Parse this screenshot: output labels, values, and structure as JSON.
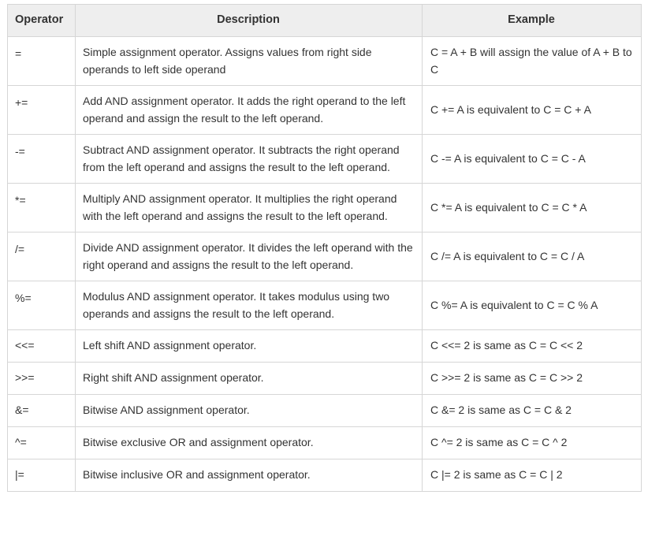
{
  "table": {
    "headers": {
      "operator": "Operator",
      "description": "Description",
      "example": "Example"
    },
    "rows": [
      {
        "operator": "=",
        "description": "Simple assignment operator. Assigns values from right side operands to left side operand",
        "example": "C = A + B will assign the value of A + B to C"
      },
      {
        "operator": "+=",
        "description": "Add AND assignment operator. It adds the right operand to the left operand and assign the result to the left operand.",
        "example": "C += A is equivalent to C = C + A"
      },
      {
        "operator": "-=",
        "description": "Subtract AND assignment operator. It subtracts the right operand from the left operand and assigns the result to the left operand.",
        "example": "C -= A is equivalent to C = C - A"
      },
      {
        "operator": "*=",
        "description": "Multiply AND assignment operator. It multiplies the right operand with the left operand and assigns the result to the left operand.",
        "example": "C *= A is equivalent to C = C * A"
      },
      {
        "operator": "/=",
        "description": "Divide AND assignment operator. It divides the left operand with the right operand and assigns the result to the left operand.",
        "example": "C /= A is equivalent to C = C / A"
      },
      {
        "operator": "%=",
        "description": "Modulus AND assignment operator. It takes modulus using two operands and assigns the result to the left operand.",
        "example": "C %= A is equivalent to C = C % A"
      },
      {
        "operator": "<<=",
        "description": "Left shift AND assignment operator.",
        "example": "C <<= 2 is same as C = C << 2"
      },
      {
        "operator": ">>=",
        "description": "Right shift AND assignment operator.",
        "example": "C >>= 2 is same as C = C >> 2"
      },
      {
        "operator": "&=",
        "description": "Bitwise AND assignment operator.",
        "example": "C &= 2 is same as C = C & 2"
      },
      {
        "operator": "^=",
        "description": "Bitwise exclusive OR and assignment operator.",
        "example": "C ^= 2 is same as C = C ^ 2"
      },
      {
        "operator": "|=",
        "description": "Bitwise inclusive OR and assignment operator.",
        "example": "C |= 2 is same as C = C | 2"
      }
    ]
  },
  "colors": {
    "header_background": "#eeeeee",
    "border": "#d6d6d6",
    "text": "#333333"
  }
}
